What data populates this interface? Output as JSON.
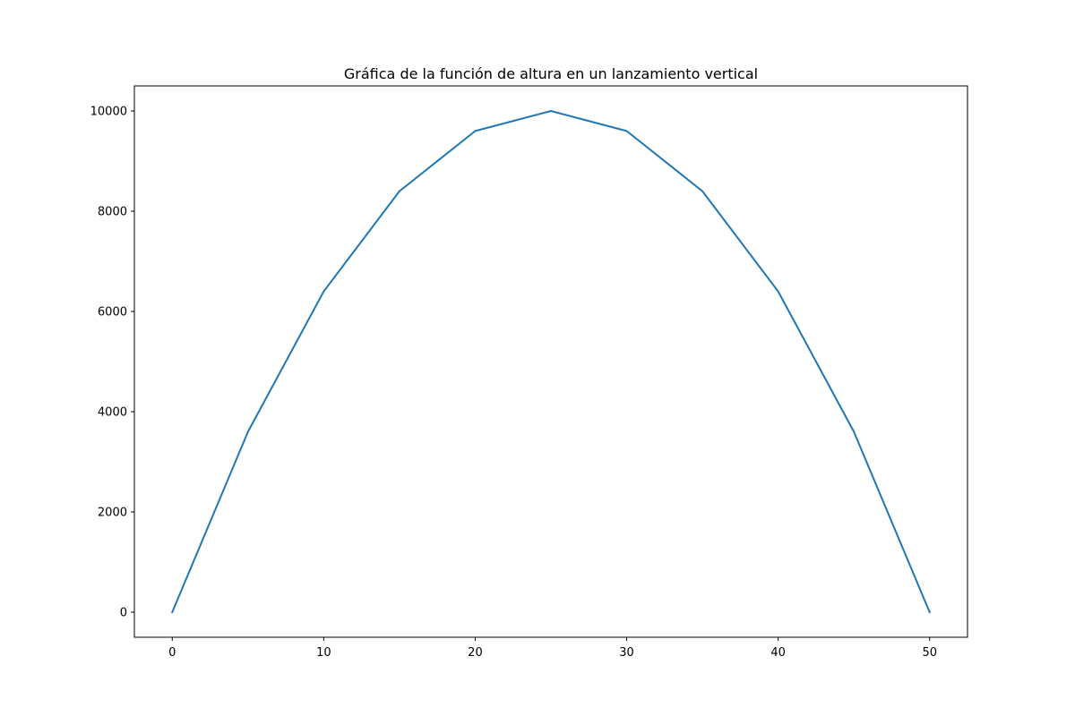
{
  "chart_data": {
    "type": "line",
    "title": "Gráfica de la función de altura en un lanzamiento vertical",
    "xlabel": "",
    "ylabel": "",
    "x": [
      0,
      5,
      10,
      15,
      20,
      25,
      30,
      35,
      40,
      45,
      50
    ],
    "series": [
      {
        "values": [
          0,
          3600,
          6400,
          8400,
          9600,
          10000,
          9600,
          8400,
          6400,
          3600,
          0
        ]
      }
    ],
    "xlim": [
      -2.5,
      52.5
    ],
    "ylim": [
      -500,
      10500
    ],
    "xticks": [
      0,
      10,
      20,
      30,
      40,
      50
    ],
    "yticks": [
      0,
      2000,
      4000,
      6000,
      8000,
      10000
    ],
    "grid": false,
    "legend": "none",
    "colors": {
      "line": "#1f77b4",
      "axes": "#000000",
      "background": "#ffffff"
    }
  }
}
